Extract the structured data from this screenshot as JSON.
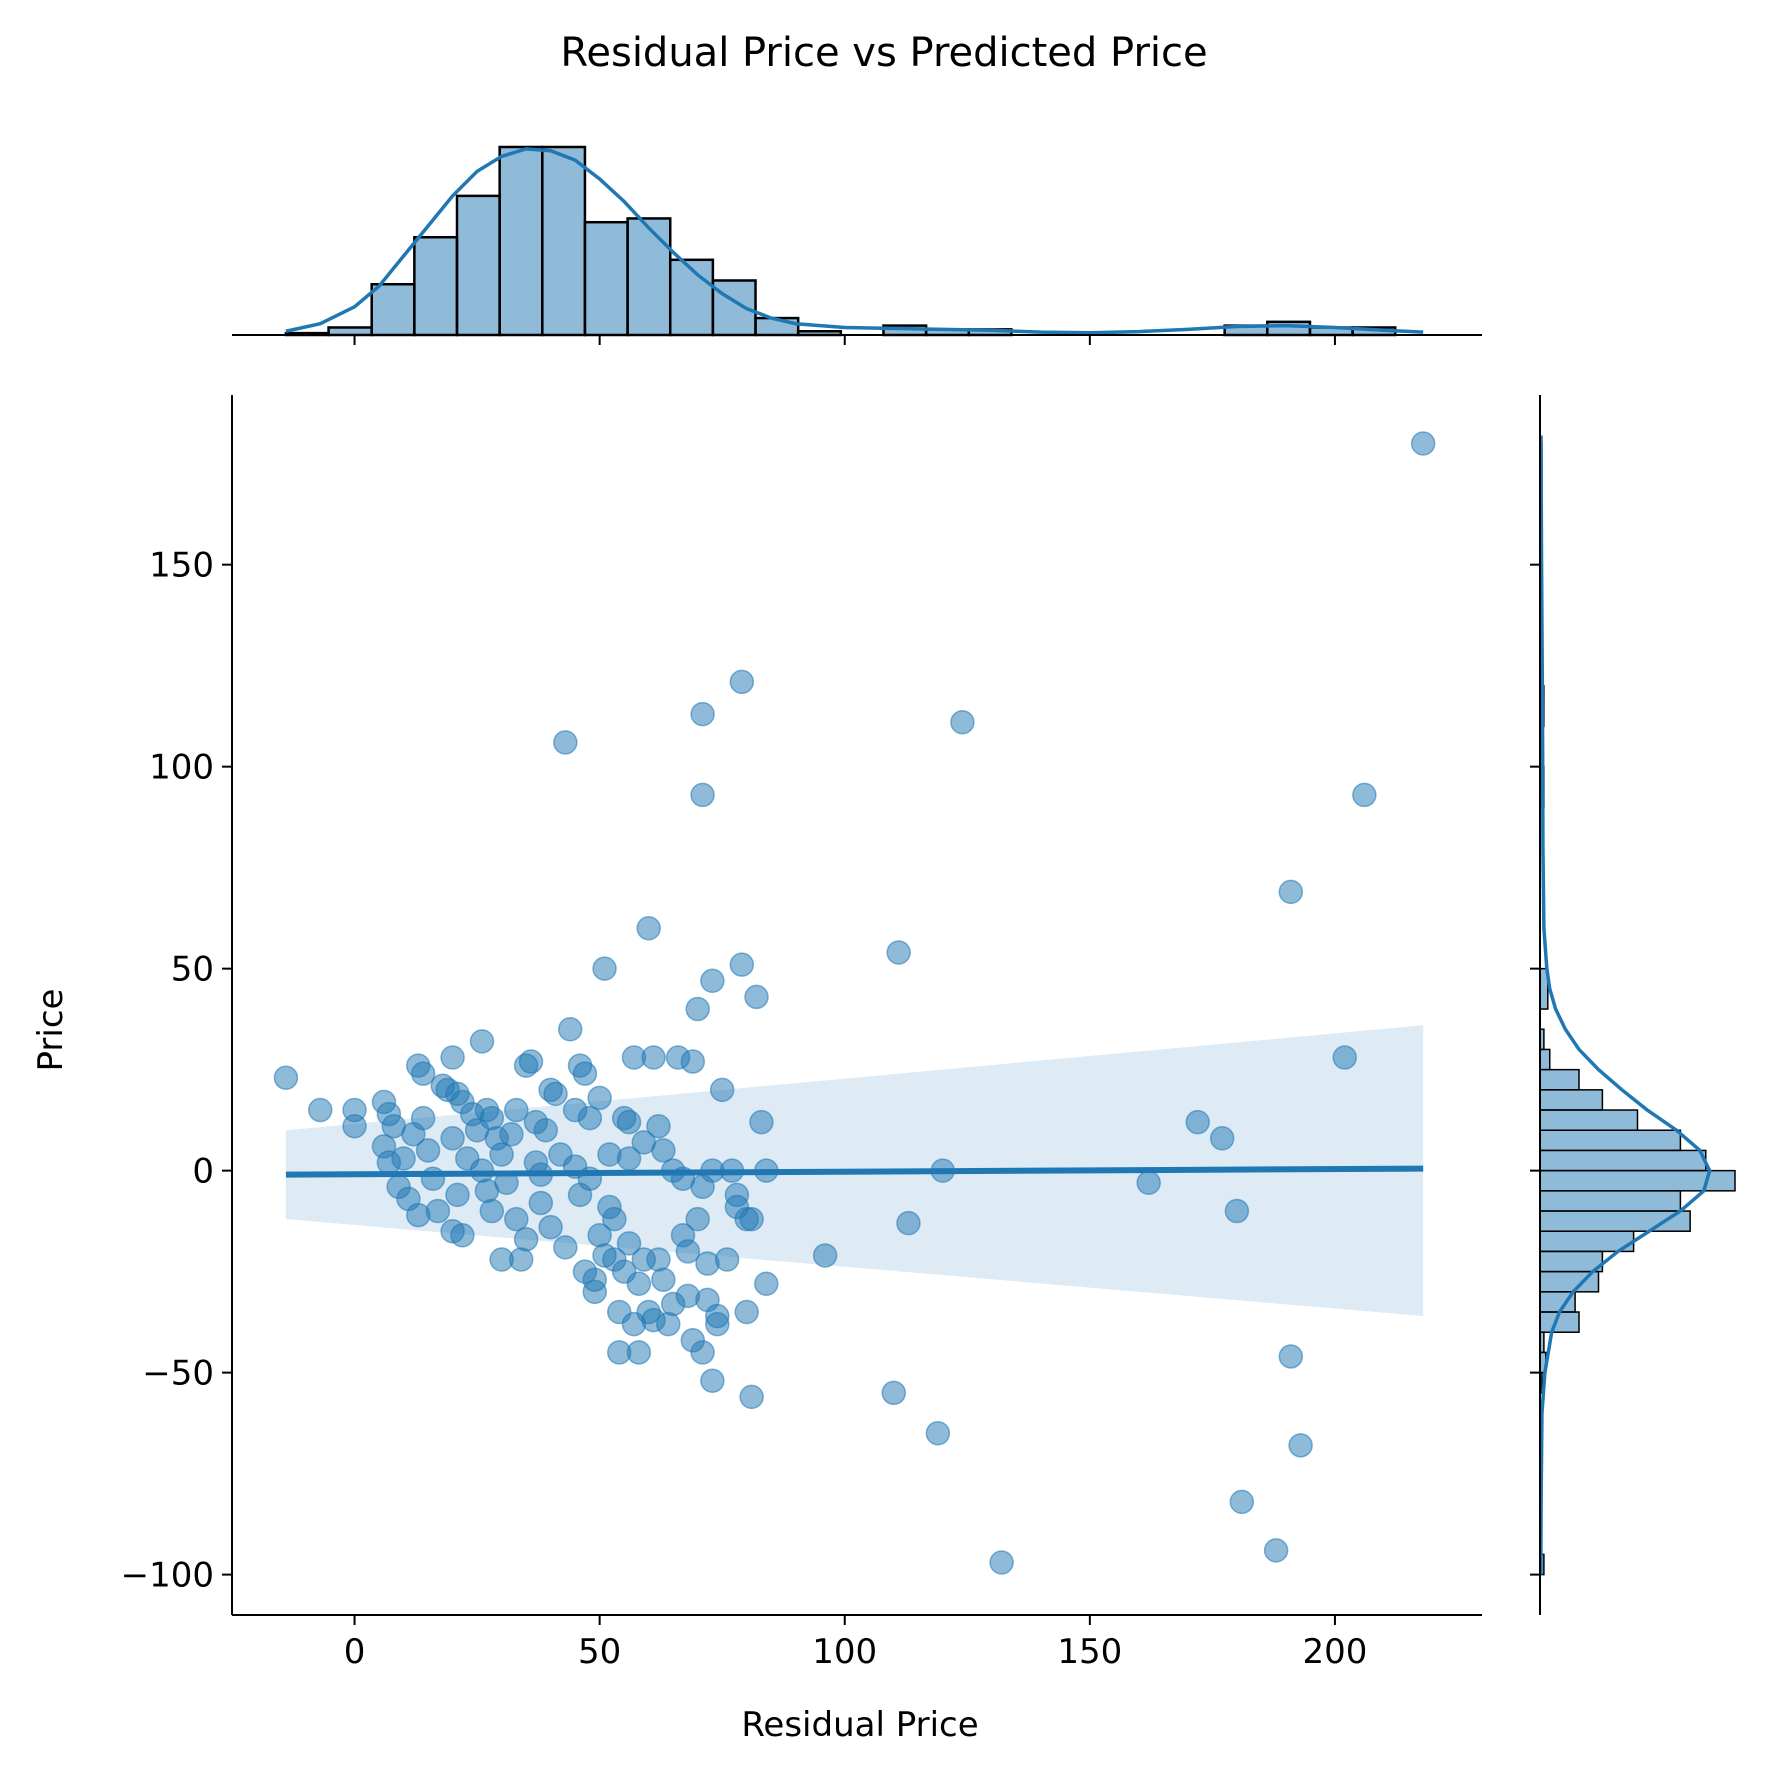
{
  "chart_data": {
    "type": "scatter",
    "title": "Residual Price vs Predicted Price",
    "xlabel": "Residual Price",
    "ylabel": "Price",
    "xlim": [
      -25,
      230
    ],
    "ylim": [
      -110,
      192
    ],
    "xticks": [
      0,
      50,
      100,
      150,
      200
    ],
    "yticks": [
      -100,
      -50,
      0,
      50,
      100,
      150
    ],
    "xtick_labels": [
      "0",
      "50",
      "100",
      "150",
      "200"
    ],
    "ytick_labels": [
      "−100",
      "−50",
      "0",
      "50",
      "100",
      "150"
    ],
    "colors": {
      "accent": "#1f77b4",
      "edge": "#000000",
      "band": "#1f77b4"
    },
    "regression": {
      "x": [
        -14,
        218
      ],
      "y": [
        -1,
        0.5
      ],
      "ci_upper_end": [
        10,
        36
      ],
      "ci_lower_end": [
        -12,
        -36
      ]
    },
    "scatter_points": [
      [
        -14,
        23
      ],
      [
        -7,
        15
      ],
      [
        0,
        15
      ],
      [
        0,
        11
      ],
      [
        6,
        6
      ],
      [
        6,
        17
      ],
      [
        7,
        14
      ],
      [
        8,
        11
      ],
      [
        7,
        2
      ],
      [
        9,
        -4
      ],
      [
        10,
        3
      ],
      [
        11,
        -7
      ],
      [
        12,
        9
      ],
      [
        13,
        26
      ],
      [
        14,
        24
      ],
      [
        14,
        13
      ],
      [
        15,
        5
      ],
      [
        16,
        -2
      ],
      [
        17,
        -10
      ],
      [
        13,
        -11
      ],
      [
        18,
        21
      ],
      [
        19,
        20
      ],
      [
        20,
        28
      ],
      [
        21,
        19
      ],
      [
        20,
        8
      ],
      [
        22,
        17
      ],
      [
        23,
        3
      ],
      [
        21,
        -6
      ],
      [
        20,
        -15
      ],
      [
        22,
        -16
      ],
      [
        24,
        14
      ],
      [
        25,
        10
      ],
      [
        26,
        32
      ],
      [
        27,
        15
      ],
      [
        28,
        13
      ],
      [
        26,
        0
      ],
      [
        27,
        -5
      ],
      [
        28,
        -10
      ],
      [
        29,
        8
      ],
      [
        30,
        4
      ],
      [
        30,
        -22
      ],
      [
        31,
        -3
      ],
      [
        32,
        9
      ],
      [
        33,
        -12
      ],
      [
        33,
        15
      ],
      [
        34,
        -22
      ],
      [
        35,
        -17
      ],
      [
        35,
        26
      ],
      [
        36,
        27
      ],
      [
        37,
        12
      ],
      [
        37,
        2
      ],
      [
        38,
        -8
      ],
      [
        38,
        -1
      ],
      [
        39,
        10
      ],
      [
        40,
        20
      ],
      [
        40,
        -14
      ],
      [
        41,
        19
      ],
      [
        42,
        4
      ],
      [
        43,
        -19
      ],
      [
        43,
        106
      ],
      [
        44,
        35
      ],
      [
        45,
        15
      ],
      [
        45,
        1
      ],
      [
        46,
        -6
      ],
      [
        46,
        26
      ],
      [
        47,
        24
      ],
      [
        47,
        -25
      ],
      [
        48,
        13
      ],
      [
        48,
        -2
      ],
      [
        49,
        -30
      ],
      [
        49,
        -27
      ],
      [
        50,
        18
      ],
      [
        50,
        -16
      ],
      [
        51,
        50
      ],
      [
        51,
        -21
      ],
      [
        52,
        4
      ],
      [
        52,
        -9
      ],
      [
        53,
        -22
      ],
      [
        53,
        -12
      ],
      [
        54,
        -35
      ],
      [
        54,
        -45
      ],
      [
        55,
        13
      ],
      [
        55,
        -25
      ],
      [
        56,
        12
      ],
      [
        56,
        3
      ],
      [
        56,
        -18
      ],
      [
        57,
        28
      ],
      [
        57,
        -38
      ],
      [
        58,
        -28
      ],
      [
        58,
        -45
      ],
      [
        59,
        -22
      ],
      [
        59,
        7
      ],
      [
        60,
        60
      ],
      [
        60,
        -35
      ],
      [
        61,
        28
      ],
      [
        61,
        -37
      ],
      [
        62,
        11
      ],
      [
        62,
        -22
      ],
      [
        63,
        5
      ],
      [
        63,
        -27
      ],
      [
        64,
        -38
      ],
      [
        65,
        -33
      ],
      [
        65,
        0
      ],
      [
        66,
        28
      ],
      [
        67,
        -2
      ],
      [
        67,
        -16
      ],
      [
        68,
        -20
      ],
      [
        68,
        -31
      ],
      [
        69,
        27
      ],
      [
        69,
        -42
      ],
      [
        70,
        40
      ],
      [
        70,
        -12
      ],
      [
        71,
        113
      ],
      [
        71,
        93
      ],
      [
        71,
        -45
      ],
      [
        71,
        -4
      ],
      [
        72,
        -32
      ],
      [
        72,
        -23
      ],
      [
        73,
        0
      ],
      [
        73,
        -52
      ],
      [
        73,
        47
      ],
      [
        74,
        -38
      ],
      [
        74,
        -36
      ],
      [
        75,
        20
      ],
      [
        76,
        -22
      ],
      [
        77,
        0
      ],
      [
        78,
        -6
      ],
      [
        78,
        -9
      ],
      [
        79,
        51
      ],
      [
        79,
        121
      ],
      [
        80,
        -12
      ],
      [
        80,
        -35
      ],
      [
        81,
        -56
      ],
      [
        81,
        -12
      ],
      [
        82,
        43
      ],
      [
        83,
        12
      ],
      [
        84,
        -28
      ],
      [
        84,
        0
      ],
      [
        96,
        -21
      ],
      [
        110,
        -55
      ],
      [
        111,
        54
      ],
      [
        113,
        -13
      ],
      [
        119,
        -65
      ],
      [
        120,
        0
      ],
      [
        124,
        111
      ],
      [
        132,
        -97
      ],
      [
        162,
        -3
      ],
      [
        172,
        12
      ],
      [
        177,
        8
      ],
      [
        180,
        -10
      ],
      [
        181,
        -82
      ],
      [
        188,
        -94
      ],
      [
        191,
        69
      ],
      [
        191,
        -46
      ],
      [
        193,
        -68
      ],
      [
        202,
        28
      ],
      [
        206,
        93
      ],
      [
        218,
        180
      ]
    ],
    "hist_x": {
      "bins": [
        [
          -14,
          -5.3,
          0.01
        ],
        [
          -5.3,
          3.5,
          0.04
        ],
        [
          3.5,
          12.2,
          0.27
        ],
        [
          12.2,
          20.9,
          0.52
        ],
        [
          20.9,
          29.6,
          0.74
        ],
        [
          29.6,
          38.3,
          1.0
        ],
        [
          38.3,
          47,
          1.0
        ],
        [
          47,
          55.7,
          0.6
        ],
        [
          55.7,
          64.4,
          0.62
        ],
        [
          64.4,
          73.1,
          0.4
        ],
        [
          73.1,
          81.8,
          0.29
        ],
        [
          81.8,
          90.5,
          0.09
        ],
        [
          90.5,
          99.2,
          0.02
        ],
        [
          99.2,
          107.9,
          0.0
        ],
        [
          107.9,
          116.6,
          0.05
        ],
        [
          116.6,
          125.3,
          0.03
        ],
        [
          125.3,
          134,
          0.03
        ],
        [
          134,
          142.7,
          0.0
        ],
        [
          142.7,
          151.4,
          0.0
        ],
        [
          151.4,
          160.1,
          0.0
        ],
        [
          160.1,
          168.8,
          0.0
        ],
        [
          168.8,
          177.5,
          0.0
        ],
        [
          177.5,
          186.2,
          0.05
        ],
        [
          186.2,
          194.9,
          0.07
        ],
        [
          194.9,
          203.6,
          0.04
        ],
        [
          203.6,
          212.3,
          0.04
        ]
      ],
      "kde": [
        [
          -14,
          0.02
        ],
        [
          -7,
          0.06
        ],
        [
          0,
          0.15
        ],
        [
          5,
          0.26
        ],
        [
          10,
          0.42
        ],
        [
          15,
          0.58
        ],
        [
          20,
          0.74
        ],
        [
          25,
          0.87
        ],
        [
          30,
          0.95
        ],
        [
          35,
          0.99
        ],
        [
          40,
          0.98
        ],
        [
          45,
          0.93
        ],
        [
          50,
          0.83
        ],
        [
          55,
          0.71
        ],
        [
          60,
          0.57
        ],
        [
          65,
          0.44
        ],
        [
          70,
          0.32
        ],
        [
          75,
          0.22
        ],
        [
          80,
          0.14
        ],
        [
          85,
          0.09
        ],
        [
          90,
          0.06
        ],
        [
          100,
          0.04
        ],
        [
          110,
          0.035
        ],
        [
          120,
          0.03
        ],
        [
          130,
          0.025
        ],
        [
          140,
          0.015
        ],
        [
          150,
          0.012
        ],
        [
          160,
          0.018
        ],
        [
          170,
          0.03
        ],
        [
          180,
          0.045
        ],
        [
          190,
          0.05
        ],
        [
          200,
          0.04
        ],
        [
          210,
          0.025
        ],
        [
          218,
          0.015
        ]
      ]
    },
    "hist_y": {
      "bins": [
        [
          170,
          180,
          0.01
        ],
        [
          110,
          120,
          0.02
        ],
        [
          90,
          100,
          0.02
        ],
        [
          40,
          50,
          0.04
        ],
        [
          30,
          35,
          0.02
        ],
        [
          25,
          30,
          0.05
        ],
        [
          20,
          25,
          0.2
        ],
        [
          15,
          20,
          0.32
        ],
        [
          10,
          15,
          0.5
        ],
        [
          5,
          10,
          0.72
        ],
        [
          0,
          5,
          0.85
        ],
        [
          -5,
          0,
          1.0
        ],
        [
          -10,
          -5,
          0.72
        ],
        [
          -15,
          -10,
          0.77
        ],
        [
          -20,
          -15,
          0.48
        ],
        [
          -25,
          -20,
          0.32
        ],
        [
          -30,
          -25,
          0.3
        ],
        [
          -35,
          -30,
          0.18
        ],
        [
          -40,
          -35,
          0.2
        ],
        [
          -45,
          -40,
          0.02
        ],
        [
          -50,
          -45,
          0.03
        ],
        [
          -55,
          -50,
          0.01
        ],
        [
          -100,
          -95,
          0.02
        ]
      ],
      "kde": [
        [
          182,
          0.005
        ],
        [
          150,
          0.008
        ],
        [
          120,
          0.012
        ],
        [
          100,
          0.014
        ],
        [
          80,
          0.015
        ],
        [
          60,
          0.02
        ],
        [
          50,
          0.035
        ],
        [
          45,
          0.05
        ],
        [
          40,
          0.08
        ],
        [
          35,
          0.13
        ],
        [
          30,
          0.2
        ],
        [
          25,
          0.3
        ],
        [
          20,
          0.42
        ],
        [
          15,
          0.55
        ],
        [
          10,
          0.7
        ],
        [
          5,
          0.82
        ],
        [
          0,
          0.87
        ],
        [
          -5,
          0.84
        ],
        [
          -10,
          0.72
        ],
        [
          -15,
          0.56
        ],
        [
          -20,
          0.4
        ],
        [
          -25,
          0.27
        ],
        [
          -30,
          0.17
        ],
        [
          -35,
          0.1
        ],
        [
          -40,
          0.06
        ],
        [
          -50,
          0.025
        ],
        [
          -60,
          0.01
        ],
        [
          -80,
          0.006
        ],
        [
          -100,
          0.004
        ]
      ]
    }
  }
}
